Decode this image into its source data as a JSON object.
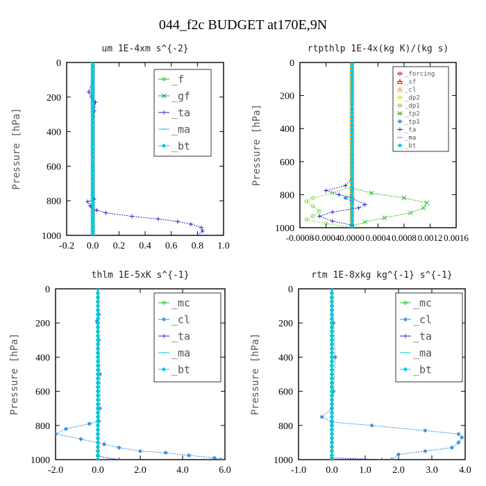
{
  "figure_title": "044_f2c  BUDGET at170E,9N",
  "colors": {
    "green": "#22bb22",
    "lime": "#66dd33",
    "teal": "#1a9090",
    "blue": "#2222cc",
    "cyan": "#00c8e8",
    "skyblue": "#2a8ad8",
    "red": "#ee1111",
    "orange": "#ffaa00",
    "yellow": "#dddd00"
  },
  "chart_data": [
    {
      "type": "line",
      "title": "um  1E-4xm s^{-2}",
      "ylabel": "Pressure [hPa]",
      "xlim": [
        -0.2,
        1.0
      ],
      "ylim": [
        1000,
        0
      ],
      "y_inverted": true,
      "xticks": [
        "-0.2",
        "0.0",
        "0.2",
        "0.4",
        "0.6",
        "0.8",
        "1.0"
      ],
      "xtick_values": [
        -0.2,
        0.0,
        0.2,
        0.4,
        0.6,
        0.8,
        1.0
      ],
      "yticks": [
        "0",
        "200",
        "400",
        "600",
        "800",
        "1000"
      ],
      "ytick_values": [
        0,
        200,
        400,
        600,
        800,
        1000
      ],
      "legend": "top-right",
      "series": [
        {
          "name": "_f",
          "color": "green",
          "marker": "circle",
          "points": [
            [
              0,
              0
            ],
            [
              0,
              50
            ],
            [
              0,
              100
            ],
            [
              0,
              200
            ],
            [
              0,
              300
            ],
            [
              0,
              400
            ],
            [
              0,
              500
            ],
            [
              0,
              600
            ],
            [
              0,
              700
            ],
            [
              0,
              800
            ],
            [
              0,
              900
            ],
            [
              0,
              1000
            ]
          ]
        },
        {
          "name": "_gf",
          "color": "teal",
          "marker": "x",
          "points": [
            [
              0,
              0
            ],
            [
              0,
              50
            ],
            [
              0,
              100
            ],
            [
              0,
              200
            ],
            [
              0,
              300
            ],
            [
              0,
              400
            ],
            [
              0,
              500
            ],
            [
              0,
              600
            ],
            [
              0,
              700
            ],
            [
              0,
              800
            ],
            [
              0,
              900
            ],
            [
              0,
              1000
            ]
          ]
        },
        {
          "name": "_ta",
          "color": "blue",
          "marker": "plus",
          "points": [
            [
              0.0,
              0
            ],
            [
              0.0,
              100
            ],
            [
              -0.03,
              170
            ],
            [
              -0.01,
              200
            ],
            [
              0.02,
              230
            ],
            [
              0.01,
              280
            ],
            [
              0.0,
              400
            ],
            [
              0.0,
              600
            ],
            [
              0.0,
              750
            ],
            [
              0.01,
              790
            ],
            [
              -0.04,
              805
            ],
            [
              -0.02,
              830
            ],
            [
              0.03,
              855
            ],
            [
              0.1,
              870
            ],
            [
              0.3,
              890
            ],
            [
              0.5,
              905
            ],
            [
              0.65,
              920
            ],
            [
              0.75,
              935
            ],
            [
              0.83,
              955
            ],
            [
              0.84,
              975
            ],
            [
              0.8,
              1000
            ]
          ]
        },
        {
          "name": "_ma",
          "color": "cyan",
          "marker": "dash",
          "points": [
            [
              0,
              0
            ],
            [
              0,
              500
            ],
            [
              0,
              1000
            ]
          ]
        },
        {
          "name": "_bt",
          "color": "cyan",
          "marker": "diamond",
          "points": [
            [
              0,
              0
            ],
            [
              0,
              100
            ],
            [
              0,
              200
            ],
            [
              0,
              300
            ],
            [
              0,
              400
            ],
            [
              0,
              500
            ],
            [
              0,
              600
            ],
            [
              0,
              700
            ],
            [
              0,
              800
            ],
            [
              0,
              900
            ],
            [
              0,
              1000
            ]
          ]
        }
      ]
    },
    {
      "type": "line",
      "title": "rtpthlp  1E-4x(kg K)/(kg s)",
      "ylabel": "Pressure [hPa]",
      "xlim": [
        -0.0008,
        0.0016
      ],
      "ylim": [
        1000,
        0
      ],
      "y_inverted": true,
      "xticks": [
        "-0.0008",
        "-0.0004",
        "0.0000",
        "0.0004",
        "0.0008",
        "0.0012",
        "0.0016"
      ],
      "xtick_values": [
        -0.0008,
        -0.0004,
        0.0,
        0.0004,
        0.0008,
        0.0012,
        0.0016
      ],
      "yticks": [
        "0",
        "200",
        "400",
        "600",
        "800",
        "1000"
      ],
      "ytick_values": [
        0,
        200,
        400,
        600,
        800,
        1000
      ],
      "legend": "top-right",
      "series": [
        {
          "name": "_forcing",
          "color": "red",
          "marker": "circle",
          "points": [
            [
              0,
              0
            ],
            [
              0,
              500
            ],
            [
              0,
              1000
            ]
          ]
        },
        {
          "name": "_sf",
          "color": "red",
          "marker": "triangle",
          "points": [
            [
              0,
              0
            ],
            [
              0,
              500
            ],
            [
              0,
              1000
            ]
          ]
        },
        {
          "name": "_cl",
          "color": "orange",
          "marker": "triangle",
          "points": [
            [
              0,
              0
            ],
            [
              0,
              500
            ],
            [
              0,
              1000
            ]
          ]
        },
        {
          "name": "_dp2",
          "color": "yellow",
          "marker": "circle",
          "points": [
            [
              0,
              0
            ],
            [
              0,
              500
            ],
            [
              0,
              1000
            ]
          ]
        },
        {
          "name": "_dp1",
          "color": "lime",
          "marker": "circle",
          "points": [
            [
              0.0,
              0
            ],
            [
              0.0,
              750
            ],
            [
              -0.0003,
              790
            ],
            [
              -0.0006,
              820
            ],
            [
              -0.0007,
              840
            ],
            [
              -0.0006,
              870
            ],
            [
              -0.0005,
              900
            ],
            [
              -0.0006,
              930
            ],
            [
              -0.0007,
              950
            ],
            [
              -0.0004,
              975
            ],
            [
              0.0,
              1000
            ]
          ]
        },
        {
          "name": "_tp2",
          "color": "green",
          "marker": "x",
          "points": [
            [
              0.0,
              0
            ],
            [
              0.0,
              760
            ],
            [
              0.0003,
              790
            ],
            [
              0.0008,
              820
            ],
            [
              0.00115,
              850
            ],
            [
              0.0011,
              880
            ],
            [
              0.0009,
              910
            ],
            [
              0.0005,
              940
            ],
            [
              0.0002,
              965
            ],
            [
              0.0,
              990
            ],
            [
              0.0,
              1000
            ]
          ]
        },
        {
          "name": "_tp1",
          "color": "skyblue",
          "marker": "star",
          "points": [
            [
              0.0,
              0
            ],
            [
              0.0,
              600
            ],
            [
              0.0,
              800
            ],
            [
              -0.0001,
              820
            ],
            [
              0.0,
              840
            ],
            [
              0.0,
              1000
            ]
          ]
        },
        {
          "name": "_ta",
          "color": "blue",
          "marker": "plus",
          "points": [
            [
              0.0,
              0
            ],
            [
              0.0,
              700
            ],
            [
              -0.0001,
              745
            ],
            [
              -0.0004,
              775
            ],
            [
              -0.0002,
              800
            ],
            [
              0.0,
              820
            ],
            [
              0.0002,
              860
            ],
            [
              0.0001,
              880
            ],
            [
              -0.0003,
              905
            ],
            [
              -0.0005,
              930
            ],
            [
              -0.0003,
              960
            ],
            [
              0.0,
              985
            ],
            [
              0.0,
              1000
            ]
          ]
        },
        {
          "name": "_ma",
          "color": "cyan",
          "marker": "dash",
          "points": [
            [
              0,
              0
            ],
            [
              0,
              500
            ],
            [
              0,
              1000
            ]
          ]
        },
        {
          "name": "_bt",
          "color": "cyan",
          "marker": "diamond",
          "points": [
            [
              0,
              0
            ],
            [
              0,
              500
            ],
            [
              0,
              1000
            ]
          ]
        }
      ]
    },
    {
      "type": "line",
      "title": "thlm  1E-5xK s^{-1}",
      "ylabel": "Pressure [hPa]",
      "xlim": [
        -2.0,
        6.0
      ],
      "ylim": [
        1000,
        0
      ],
      "y_inverted": true,
      "xticks": [
        "-2.0",
        "0.0",
        "2.0",
        "4.0",
        "6.0"
      ],
      "xtick_values": [
        -2.0,
        0.0,
        2.0,
        4.0,
        6.0
      ],
      "yticks": [
        "0",
        "200",
        "400",
        "600",
        "800",
        "1000"
      ],
      "ytick_values": [
        0,
        200,
        400,
        600,
        800,
        1000
      ],
      "legend": "top-right",
      "series": [
        {
          "name": "_mc",
          "color": "green",
          "marker": "circle",
          "points": [
            [
              0,
              0
            ],
            [
              0,
              100
            ],
            [
              0,
              200
            ],
            [
              0,
              300
            ],
            [
              0,
              400
            ],
            [
              0,
              500
            ],
            [
              0,
              600
            ],
            [
              0,
              700
            ],
            [
              0,
              800
            ],
            [
              0,
              900
            ],
            [
              0,
              1000
            ]
          ]
        },
        {
          "name": "_cl",
          "color": "skyblue",
          "marker": "star",
          "points": [
            [
              0.0,
              0
            ],
            [
              0.05,
              150
            ],
            [
              -0.05,
              190
            ],
            [
              0.05,
              300
            ],
            [
              0.1,
              500
            ],
            [
              0.1,
              700
            ],
            [
              0.05,
              775
            ],
            [
              -0.4,
              790
            ],
            [
              -1.5,
              820
            ],
            [
              -2.0,
              850
            ],
            [
              -0.8,
              880
            ],
            [
              0.3,
              910
            ],
            [
              1.0,
              930
            ],
            [
              2.0,
              950
            ],
            [
              3.2,
              960
            ],
            [
              4.3,
              975
            ],
            [
              5.5,
              990
            ],
            [
              5.8,
              1000
            ]
          ]
        },
        {
          "name": "_ta",
          "color": "blue",
          "marker": "plus",
          "points": [
            [
              0,
              0
            ],
            [
              0,
              500
            ],
            [
              0,
              980
            ],
            [
              1.0,
              1000
            ]
          ]
        },
        {
          "name": "_ma",
          "color": "cyan",
          "marker": "dash",
          "points": [
            [
              0,
              0
            ],
            [
              0,
              500
            ],
            [
              0,
              1000
            ]
          ]
        },
        {
          "name": "_bt",
          "color": "cyan",
          "marker": "diamond",
          "points": [
            [
              0,
              0
            ],
            [
              0,
              200
            ],
            [
              0,
              400
            ],
            [
              0,
              600
            ],
            [
              0,
              800
            ],
            [
              0,
              1000
            ]
          ]
        }
      ]
    },
    {
      "type": "line",
      "title": "rtm  1E-8xkg kg^{-1} s^{-1}",
      "ylabel": "Pressure [hPa]",
      "xlim": [
        -1.0,
        4.0
      ],
      "ylim": [
        1000,
        0
      ],
      "y_inverted": true,
      "xticks": [
        "-1.0",
        "0.0",
        "1.0",
        "2.0",
        "3.0",
        "4.0"
      ],
      "xtick_values": [
        -1.0,
        0.0,
        1.0,
        2.0,
        3.0,
        4.0
      ],
      "yticks": [
        "0",
        "200",
        "400",
        "600",
        "800",
        "1000"
      ],
      "ytick_values": [
        0,
        200,
        400,
        600,
        800,
        1000
      ],
      "legend": "top-right",
      "series": [
        {
          "name": "_mc",
          "color": "green",
          "marker": "circle",
          "points": [
            [
              0,
              0
            ],
            [
              0,
              100
            ],
            [
              0,
              200
            ],
            [
              0,
              300
            ],
            [
              0,
              400
            ],
            [
              0,
              500
            ],
            [
              0,
              600
            ],
            [
              0,
              700
            ],
            [
              0,
              800
            ],
            [
              0,
              900
            ],
            [
              0,
              1000
            ]
          ]
        },
        {
          "name": "_cl",
          "color": "skyblue",
          "marker": "star",
          "points": [
            [
              0.0,
              0
            ],
            [
              0.05,
              200
            ],
            [
              0.1,
              400
            ],
            [
              0.05,
              600
            ],
            [
              0.0,
              700
            ],
            [
              -0.3,
              750
            ],
            [
              0.0,
              780
            ],
            [
              1.2,
              800
            ],
            [
              2.8,
              830
            ],
            [
              3.8,
              850
            ],
            [
              3.9,
              870
            ],
            [
              3.8,
              900
            ],
            [
              3.6,
              930
            ],
            [
              2.8,
              950
            ],
            [
              2.0,
              970
            ],
            [
              1.8,
              1000
            ]
          ]
        },
        {
          "name": "_ta",
          "color": "blue",
          "marker": "plus",
          "points": [
            [
              0,
              0
            ],
            [
              0,
              500
            ],
            [
              0,
              990
            ],
            [
              1.5,
              1000
            ]
          ]
        },
        {
          "name": "_ma",
          "color": "cyan",
          "marker": "dash",
          "points": [
            [
              0,
              0
            ],
            [
              0,
              500
            ],
            [
              0,
              1000
            ]
          ]
        },
        {
          "name": "_bt",
          "color": "cyan",
          "marker": "diamond",
          "points": [
            [
              0,
              0
            ],
            [
              0,
              200
            ],
            [
              0,
              400
            ],
            [
              0,
              600
            ],
            [
              0,
              800
            ],
            [
              0,
              1000
            ]
          ]
        }
      ]
    }
  ]
}
